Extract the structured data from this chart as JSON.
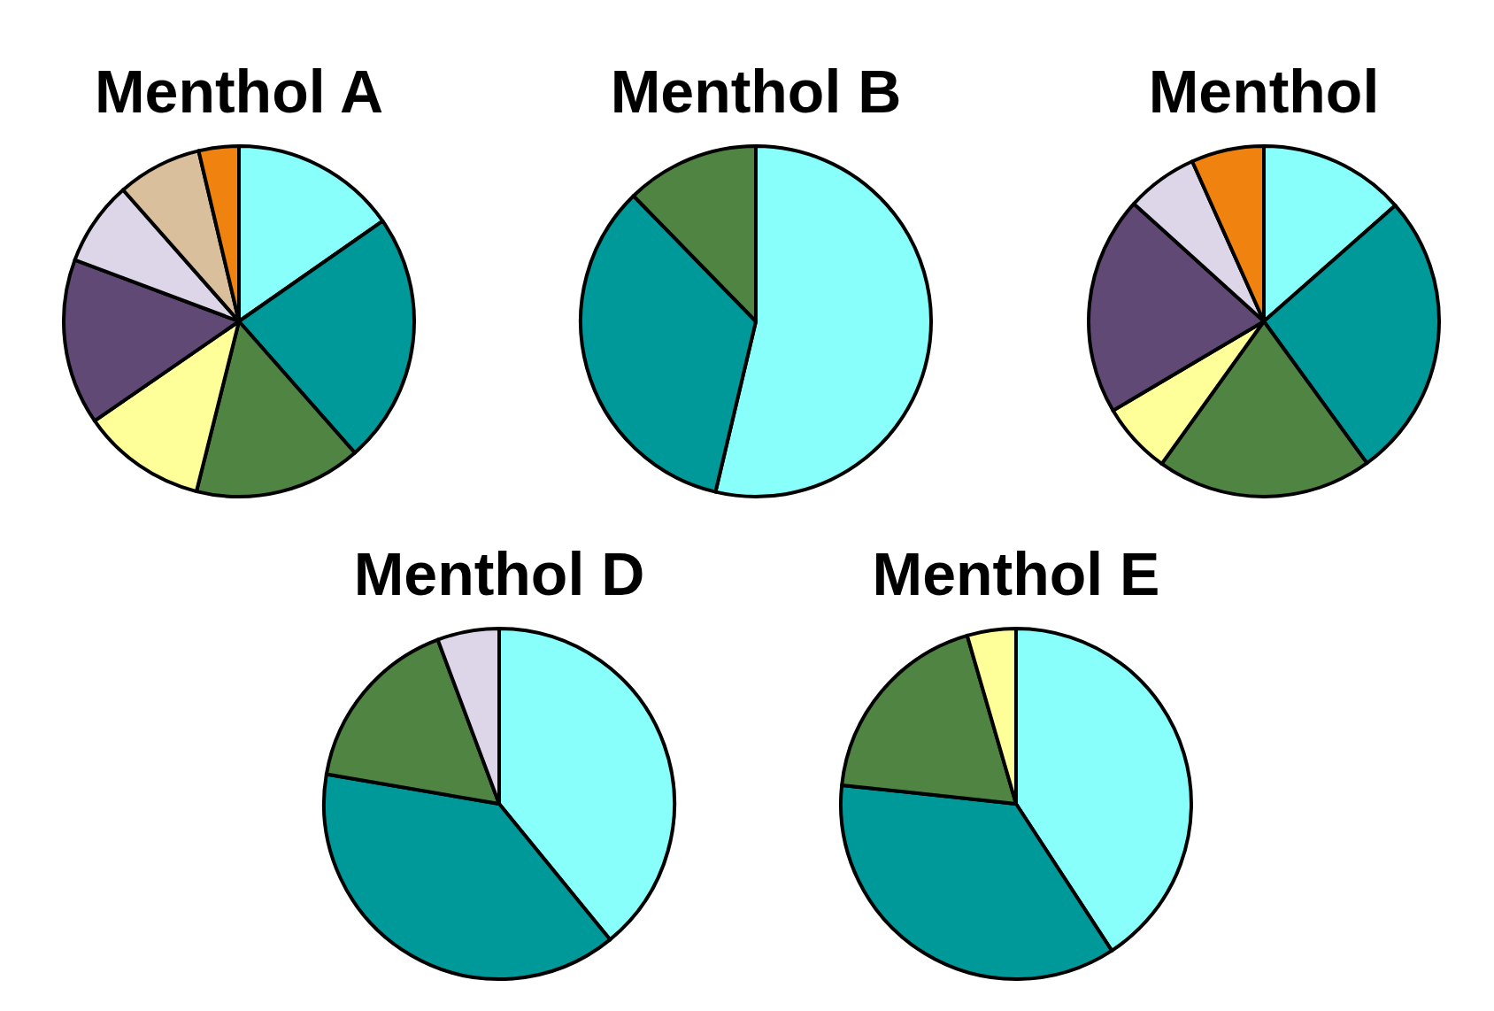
{
  "chart_data": [
    {
      "type": "pie",
      "title": "Menthol A",
      "categories": [
        null,
        null,
        null,
        null,
        null,
        null,
        null,
        null
      ],
      "values": [
        15.3,
        23.2,
        15.4,
        11.5,
        15.3,
        7.8,
        7.8,
        3.7
      ],
      "colors": [
        "#88fffa",
        "#009999",
        "#4f8442",
        "#ffff99",
        "#604a75",
        "#ddd5e8",
        "#d9bf9b",
        "#f0820f"
      ]
    },
    {
      "type": "pie",
      "title": "Menthol B",
      "categories": [
        null,
        null,
        null
      ],
      "values": [
        53.7,
        34.0,
        12.3
      ],
      "colors": [
        "#88fffa",
        "#009999",
        "#4f8442"
      ]
    },
    {
      "type": "pie",
      "title": "Menthol",
      "categories": [
        null,
        null,
        null,
        null,
        null,
        null,
        null
      ],
      "values": [
        13.5,
        26.5,
        19.9,
        6.6,
        20.2,
        6.6,
        6.7
      ],
      "colors": [
        "#88fffa",
        "#009999",
        "#4f8442",
        "#ffff99",
        "#604a75",
        "#ddd5e8",
        "#f0820f"
      ]
    },
    {
      "type": "pie",
      "title": "Menthol D",
      "categories": [
        null,
        null,
        null,
        null
      ],
      "values": [
        39.1,
        38.6,
        16.6,
        5.7
      ],
      "colors": [
        "#88fffa",
        "#009999",
        "#4f8442",
        "#ddd5e8"
      ]
    },
    {
      "type": "pie",
      "title": "Menthol E",
      "categories": [
        null,
        null,
        null,
        null
      ],
      "values": [
        40.8,
        35.9,
        18.8,
        4.5
      ],
      "colors": [
        "#88fffa",
        "#009999",
        "#4f8442",
        "#ffff99"
      ]
    }
  ]
}
